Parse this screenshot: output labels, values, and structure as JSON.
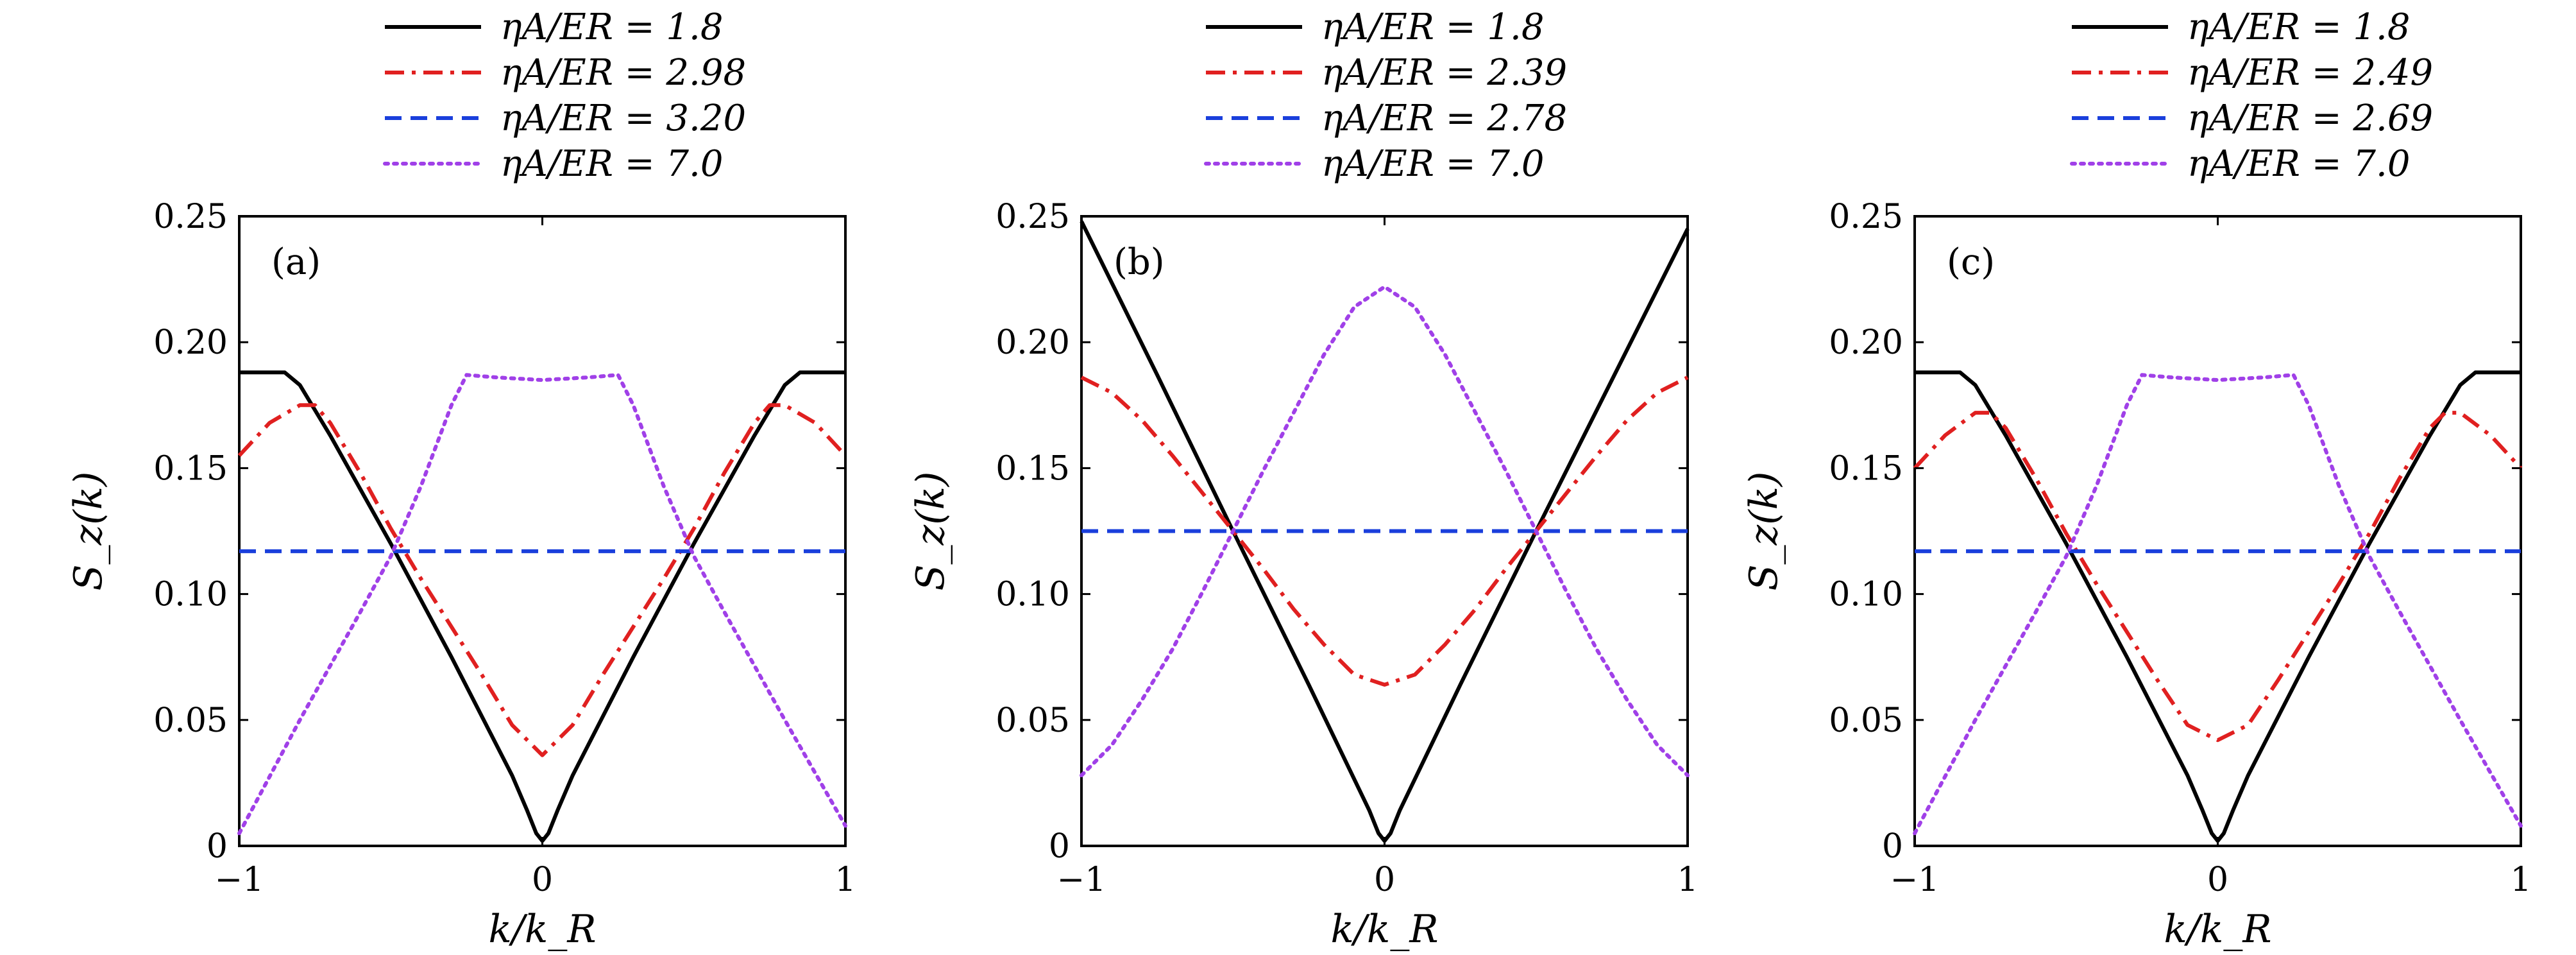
{
  "chart_data": [
    {
      "type": "line",
      "panel_label": "(a)",
      "xlabel": "k/k_R",
      "ylabel": "S_z(k)",
      "xlim": [
        -1,
        1
      ],
      "ylim": [
        0,
        0.25
      ],
      "xticks": [
        -1,
        0,
        1
      ],
      "xtick_labels": [
        "−1",
        "0",
        "1"
      ],
      "yticks": [
        0,
        0.05,
        0.1,
        0.15,
        0.2,
        0.25
      ],
      "ytick_labels": [
        "0",
        "0.05",
        "0.10",
        "0.15",
        "0.20",
        "0.25"
      ],
      "legend_position": "top",
      "series": [
        {
          "name": "ηA/ER = 1.8",
          "color": "#000000",
          "style": "solid",
          "x": [
            -1,
            -0.9,
            -0.85,
            -0.8,
            -0.7,
            -0.5,
            -0.3,
            -0.1,
            -0.05,
            -0.02,
            0,
            0.02,
            0.05,
            0.1,
            0.3,
            0.5,
            0.7,
            0.8,
            0.85,
            0.9,
            1
          ],
          "y": [
            0.188,
            0.188,
            0.188,
            0.183,
            0.163,
            0.12,
            0.075,
            0.028,
            0.014,
            0.005,
            0.002,
            0.005,
            0.014,
            0.028,
            0.075,
            0.12,
            0.163,
            0.183,
            0.188,
            0.188,
            0.188
          ]
        },
        {
          "name": "ηA/ER = 2.98",
          "color": "#e02020",
          "style": "dashdot",
          "x": [
            -1,
            -0.9,
            -0.8,
            -0.75,
            -0.7,
            -0.6,
            -0.5,
            -0.4,
            -0.3,
            -0.2,
            -0.1,
            0,
            0.1,
            0.2,
            0.3,
            0.4,
            0.5,
            0.6,
            0.7,
            0.75,
            0.8,
            0.9,
            1
          ],
          "y": [
            0.155,
            0.168,
            0.175,
            0.175,
            0.168,
            0.148,
            0.126,
            0.106,
            0.087,
            0.068,
            0.048,
            0.036,
            0.048,
            0.068,
            0.087,
            0.106,
            0.126,
            0.148,
            0.168,
            0.175,
            0.175,
            0.168,
            0.155
          ]
        },
        {
          "name": "ηA/ER = 3.20",
          "color": "#1a3fdc",
          "style": "dashed",
          "x": [
            -1,
            1
          ],
          "y": [
            0.117,
            0.117
          ]
        },
        {
          "name": "ηA/ER = 7.0",
          "color": "#a040e8",
          "style": "dotted",
          "x": [
            -1,
            -0.8,
            -0.6,
            -0.5,
            -0.4,
            -0.3,
            -0.25,
            -0.15,
            0,
            0.15,
            0.25,
            0.3,
            0.4,
            0.5,
            0.6,
            0.8,
            1
          ],
          "y": [
            0.005,
            0.05,
            0.093,
            0.115,
            0.143,
            0.175,
            0.187,
            0.186,
            0.185,
            0.186,
            0.187,
            0.175,
            0.143,
            0.115,
            0.093,
            0.05,
            0.008
          ]
        }
      ]
    },
    {
      "type": "line",
      "panel_label": "(b)",
      "xlabel": "k/k_R",
      "ylabel": "S_z(k)",
      "xlim": [
        -1,
        1
      ],
      "ylim": [
        0,
        0.25
      ],
      "xticks": [
        -1,
        0,
        1
      ],
      "xtick_labels": [
        "−1",
        "0",
        "1"
      ],
      "yticks": [
        0,
        0.05,
        0.1,
        0.15,
        0.2,
        0.25
      ],
      "ytick_labels": [
        "0",
        "0.05",
        "0.10",
        "0.15",
        "0.20",
        "0.25"
      ],
      "legend_position": "top",
      "series": [
        {
          "name": "ηA/ER = 1.8",
          "color": "#000000",
          "style": "solid",
          "x": [
            -1,
            -0.75,
            -0.5,
            -0.25,
            -0.05,
            -0.02,
            0,
            0.02,
            0.05,
            0.25,
            0.5,
            0.75,
            1
          ],
          "y": [
            0.248,
            0.187,
            0.125,
            0.064,
            0.014,
            0.005,
            0.002,
            0.005,
            0.014,
            0.064,
            0.125,
            0.185,
            0.245
          ]
        },
        {
          "name": "ηA/ER = 2.39",
          "color": "#e02020",
          "style": "dashdot",
          "x": [
            -1,
            -0.9,
            -0.8,
            -0.7,
            -0.6,
            -0.5,
            -0.4,
            -0.3,
            -0.2,
            -0.1,
            0,
            0.1,
            0.2,
            0.3,
            0.4,
            0.5,
            0.6,
            0.7,
            0.8,
            0.9,
            1
          ],
          "y": [
            0.186,
            0.18,
            0.169,
            0.155,
            0.14,
            0.125,
            0.11,
            0.094,
            0.08,
            0.068,
            0.064,
            0.068,
            0.08,
            0.094,
            0.11,
            0.125,
            0.14,
            0.155,
            0.169,
            0.18,
            0.186
          ]
        },
        {
          "name": "ηA/ER = 2.78",
          "color": "#1a3fdc",
          "style": "dashed",
          "x": [
            -1,
            1
          ],
          "y": [
            0.125,
            0.125
          ]
        },
        {
          "name": "ηA/ER = 7.0",
          "color": "#a040e8",
          "style": "dotted",
          "x": [
            -1,
            -0.9,
            -0.8,
            -0.7,
            -0.6,
            -0.5,
            -0.4,
            -0.3,
            -0.2,
            -0.1,
            0,
            0.1,
            0.2,
            0.3,
            0.4,
            0.5,
            0.6,
            0.7,
            0.8,
            0.9,
            1
          ],
          "y": [
            0.028,
            0.04,
            0.058,
            0.078,
            0.101,
            0.125,
            0.149,
            0.172,
            0.195,
            0.214,
            0.222,
            0.214,
            0.195,
            0.172,
            0.149,
            0.125,
            0.101,
            0.078,
            0.058,
            0.04,
            0.028
          ]
        }
      ]
    },
    {
      "type": "line",
      "panel_label": "(c)",
      "xlabel": "k/k_R",
      "ylabel": "S_z(k)",
      "xlim": [
        -1,
        1
      ],
      "ylim": [
        0,
        0.25
      ],
      "xticks": [
        -1,
        0,
        1
      ],
      "xtick_labels": [
        "−1",
        "0",
        "1"
      ],
      "yticks": [
        0,
        0.05,
        0.1,
        0.15,
        0.2,
        0.25
      ],
      "ytick_labels": [
        "0",
        "0.05",
        "0.10",
        "0.15",
        "0.20",
        "0.25"
      ],
      "legend_position": "top",
      "series": [
        {
          "name": "ηA/ER = 1.8",
          "color": "#000000",
          "style": "solid",
          "x": [
            -1,
            -0.9,
            -0.85,
            -0.8,
            -0.7,
            -0.5,
            -0.3,
            -0.1,
            -0.05,
            -0.02,
            0,
            0.02,
            0.05,
            0.1,
            0.3,
            0.5,
            0.7,
            0.8,
            0.85,
            0.9,
            1
          ],
          "y": [
            0.188,
            0.188,
            0.188,
            0.183,
            0.163,
            0.12,
            0.075,
            0.028,
            0.014,
            0.005,
            0.002,
            0.005,
            0.014,
            0.028,
            0.075,
            0.12,
            0.163,
            0.183,
            0.188,
            0.188,
            0.188
          ]
        },
        {
          "name": "ηA/ER = 2.49",
          "color": "#e02020",
          "style": "dashdot",
          "x": [
            -1,
            -0.9,
            -0.8,
            -0.75,
            -0.7,
            -0.6,
            -0.5,
            -0.4,
            -0.3,
            -0.2,
            -0.1,
            0,
            0.1,
            0.2,
            0.3,
            0.4,
            0.5,
            0.6,
            0.7,
            0.75,
            0.8,
            0.9,
            1
          ],
          "y": [
            0.15,
            0.163,
            0.172,
            0.172,
            0.166,
            0.146,
            0.124,
            0.104,
            0.085,
            0.066,
            0.048,
            0.042,
            0.048,
            0.066,
            0.085,
            0.104,
            0.124,
            0.146,
            0.166,
            0.172,
            0.172,
            0.163,
            0.15
          ]
        },
        {
          "name": "ηA/ER = 2.69",
          "color": "#1a3fdc",
          "style": "dashed",
          "x": [
            -1,
            1
          ],
          "y": [
            0.117,
            0.117
          ]
        },
        {
          "name": "ηA/ER = 7.0",
          "color": "#a040e8",
          "style": "dotted",
          "x": [
            -1,
            -0.8,
            -0.6,
            -0.5,
            -0.4,
            -0.3,
            -0.25,
            -0.15,
            0,
            0.15,
            0.25,
            0.3,
            0.4,
            0.5,
            0.6,
            0.8,
            1
          ],
          "y": [
            0.005,
            0.05,
            0.093,
            0.115,
            0.143,
            0.175,
            0.187,
            0.186,
            0.185,
            0.186,
            0.187,
            0.175,
            0.143,
            0.115,
            0.093,
            0.05,
            0.008
          ]
        }
      ]
    }
  ]
}
